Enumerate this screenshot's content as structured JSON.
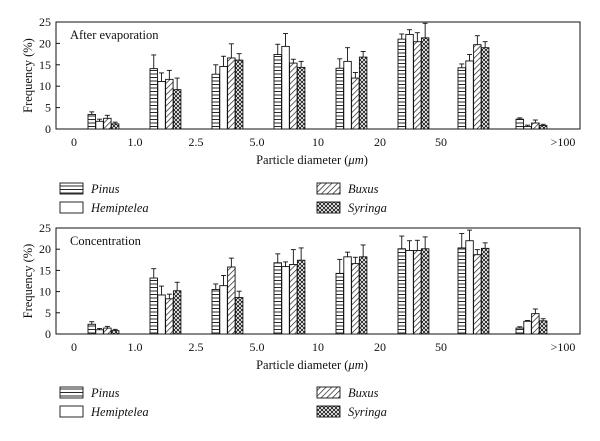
{
  "colors": {
    "ink": "#111111",
    "background": "#ffffff"
  },
  "legend": [
    "Pinus",
    "Hemiptelea",
    "Buxus",
    "Syringa"
  ],
  "chart_data": [
    {
      "type": "bar",
      "panel_title": "After evaporation",
      "xlabel_prefix": "Particle diameter (",
      "xlabel_unit": "μm",
      "xlabel_suffix": ")",
      "ylabel": "Frequency (%)",
      "ylim": [
        0,
        25
      ],
      "yticks": [
        0,
        5,
        10,
        15,
        20,
        25
      ],
      "boundaries": [
        "0",
        "1.0",
        "2.5",
        "5.0",
        "10",
        "20",
        "50",
        ">100"
      ],
      "categories": [
        "0–1.0",
        "1.0–2.5",
        "2.5–5.0",
        "5.0–10",
        "10–20",
        "20–50",
        "50–100",
        ">100"
      ],
      "grid": false,
      "legend_position": "below",
      "series": [
        {
          "name": "Pinus",
          "pattern": "hlines",
          "values": [
            3.4,
            14.1,
            12.8,
            17.4,
            14.2,
            21.0,
            14.3,
            2.3
          ],
          "errors": [
            0.6,
            3.2,
            2.2,
            2.4,
            2.2,
            1.2,
            0.9,
            0.3
          ]
        },
        {
          "name": "Hemiptelea",
          "pattern": "blank",
          "values": [
            1.8,
            11.1,
            14.6,
            19.3,
            15.8,
            22.1,
            15.9,
            0.6
          ],
          "errors": [
            0.5,
            2.0,
            2.4,
            3.0,
            3.2,
            1.1,
            1.5,
            0.3
          ]
        },
        {
          "name": "Buxus",
          "pattern": "diag",
          "values": [
            2.5,
            11.6,
            16.6,
            15.4,
            11.9,
            20.4,
            19.7,
            1.4
          ],
          "errors": [
            0.7,
            2.1,
            3.3,
            0.9,
            1.3,
            2.1,
            2.1,
            0.7
          ]
        },
        {
          "name": "Syringa",
          "pattern": "cross",
          "values": [
            1.2,
            9.2,
            16.1,
            14.4,
            16.8,
            21.3,
            19.0,
            0.8
          ],
          "errors": [
            0.4,
            2.7,
            1.5,
            1.4,
            1.3,
            3.4,
            1.4,
            0.3
          ]
        }
      ]
    },
    {
      "type": "bar",
      "panel_title": "Concentration",
      "xlabel_prefix": "Particle diameter (",
      "xlabel_unit": "μm",
      "xlabel_suffix": ")",
      "ylabel": "Frequency (%)",
      "ylim": [
        0,
        25
      ],
      "yticks": [
        0,
        5,
        10,
        15,
        20,
        25
      ],
      "boundaries": [
        "0",
        "1.0",
        "2.5",
        "5.0",
        "10",
        "20",
        "50",
        ">100"
      ],
      "categories": [
        "0–1.0",
        "1.0–2.5",
        "2.5–5.0",
        "5.0–10",
        "10–20",
        "20–50",
        "50–100",
        ">100"
      ],
      "grid": false,
      "legend_position": "below",
      "series": [
        {
          "name": "Pinus",
          "pattern": "hlines",
          "values": [
            2.3,
            13.2,
            10.5,
            16.8,
            14.3,
            20.1,
            20.3,
            1.4
          ],
          "errors": [
            0.6,
            2.2,
            1.3,
            2.1,
            3.3,
            3.0,
            3.4,
            0.3
          ]
        },
        {
          "name": "Hemiptelea",
          "pattern": "blank",
          "values": [
            1.0,
            9.2,
            11.4,
            15.9,
            18.2,
            19.7,
            22.0,
            3.0
          ],
          "errors": [
            0.3,
            2.1,
            2.4,
            1.1,
            1.1,
            2.3,
            2.5,
            0.2
          ]
        },
        {
          "name": "Buxus",
          "pattern": "diag",
          "values": [
            1.4,
            8.3,
            15.8,
            16.4,
            16.6,
            19.7,
            18.7,
            4.8
          ],
          "errors": [
            0.4,
            1.1,
            2.1,
            3.5,
            1.5,
            2.4,
            1.2,
            1.1
          ]
        },
        {
          "name": "Syringa",
          "pattern": "cross",
          "values": [
            0.8,
            10.2,
            8.6,
            17.4,
            18.2,
            20.1,
            20.2,
            3.1
          ],
          "errors": [
            0.3,
            2.0,
            1.5,
            2.9,
            2.8,
            2.8,
            1.3,
            0.5
          ]
        }
      ]
    }
  ]
}
